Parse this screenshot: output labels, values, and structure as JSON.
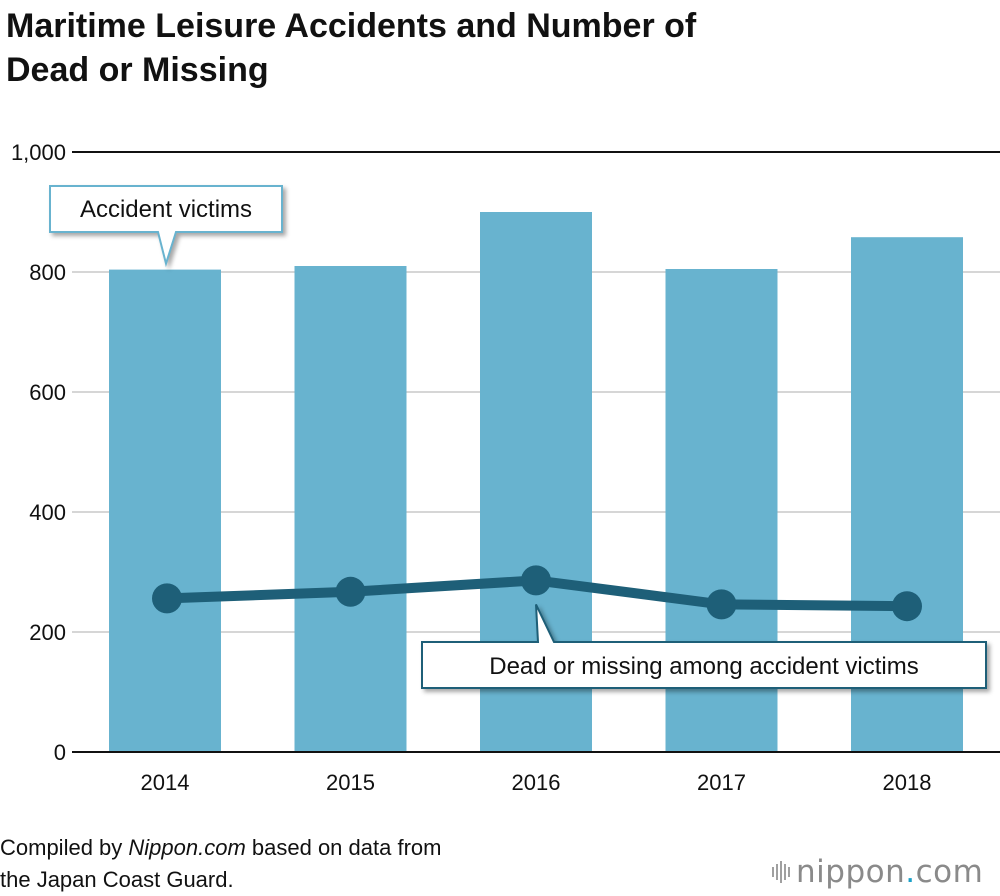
{
  "chart_data": {
    "type": "bar",
    "title": "Maritime Leisure Accidents and Number of Dead or Missing",
    "title_lines": [
      "Maritime Leisure Accidents and Number of",
      "Dead or Missing"
    ],
    "categories": [
      "2014",
      "2015",
      "2016",
      "2017",
      "2018"
    ],
    "series": [
      {
        "name": "Accident victims",
        "type": "bar",
        "color": "#68b3cf",
        "values": [
          804,
          810,
          900,
          805,
          858
        ]
      },
      {
        "name": "Dead or missing among accident victims",
        "type": "line",
        "color": "#1e5f78",
        "values": [
          256,
          267,
          286,
          246,
          243
        ]
      }
    ],
    "ylim": [
      0,
      1000
    ],
    "yticks": [
      0,
      200,
      400,
      600,
      800,
      1000
    ],
    "ytick_labels": [
      "0",
      "200",
      "400",
      "600",
      "800",
      "1,000"
    ],
    "grid": true,
    "xlabel": "",
    "ylabel": ""
  },
  "source": {
    "prefix": "Compiled by ",
    "italic": "Nippon.com",
    "suffix": " based on data from",
    "line2": "the Japan Coast Guard."
  },
  "logo": {
    "text": "nippon",
    "dot": ".",
    "suffix": "com"
  }
}
